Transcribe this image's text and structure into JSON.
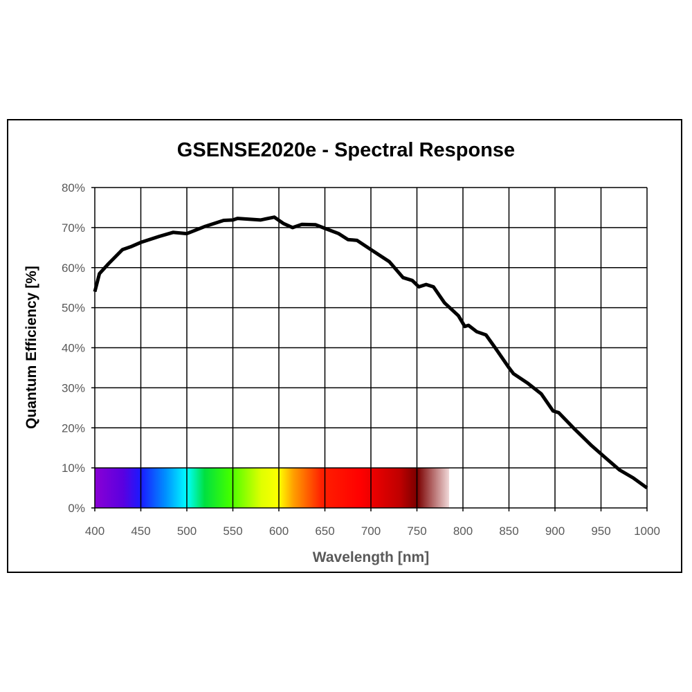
{
  "chart_data": {
    "type": "line",
    "title": "GSENSE2020e - Spectral Response",
    "xlabel": "Wavelength [nm]",
    "ylabel": "Quantum Efficiency [%]",
    "xlim": [
      400,
      1000
    ],
    "ylim": [
      0,
      80
    ],
    "grid": true,
    "x_ticks": [
      "400",
      "450",
      "500",
      "550",
      "600",
      "650",
      "700",
      "750",
      "800",
      "850",
      "900",
      "950",
      "1000"
    ],
    "y_ticks": [
      "0%",
      "10%",
      "20%",
      "30%",
      "40%",
      "50%",
      "60%",
      "70%",
      "80%"
    ],
    "spectrum_band": {
      "from_nm": 400,
      "to_nm": 785,
      "height_percent": 10
    },
    "line_color": "#000000",
    "series": [
      {
        "x": [
          400,
          405,
          415,
          430,
          440,
          450,
          470,
          485,
          500,
          520,
          540,
          550,
          555,
          580,
          595,
          605,
          615,
          625,
          640,
          650,
          665,
          675,
          685,
          700,
          720,
          735,
          745,
          752,
          760,
          768,
          780,
          795,
          802,
          806,
          815,
          825,
          835,
          850,
          855,
          870,
          885,
          898,
          904,
          920,
          940,
          955,
          970,
          985,
          1000
        ],
        "y": [
          54,
          58.5,
          61,
          64.5,
          65.3,
          66.3,
          67.8,
          68.8,
          68.5,
          70.3,
          71.8,
          71.9,
          72.3,
          71.9,
          72.6,
          71,
          70,
          70.8,
          70.7,
          69.8,
          68.5,
          67,
          66.8,
          64.5,
          61.5,
          57.5,
          56.8,
          55.2,
          55.8,
          55.2,
          51.2,
          48,
          45.3,
          45.6,
          44,
          43.2,
          40,
          35,
          33.5,
          31.2,
          28.5,
          24.2,
          23.8,
          20,
          15.5,
          12.5,
          9.5,
          7.5,
          5
        ]
      }
    ]
  }
}
